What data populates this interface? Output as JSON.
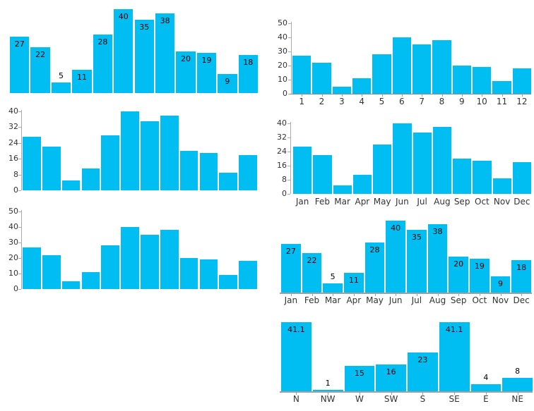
{
  "page": {
    "background": "#ffffff"
  },
  "colors": {
    "bar_fill": "#00bdf2",
    "value_label_text": "#000000",
    "tick_label_text": "#333333",
    "y_axis_line": "#ababab",
    "x_axis_line": "#a0a0a0"
  },
  "chart_data": [
    {
      "id": "labeled-bars",
      "type": "bar",
      "position": "top-left",
      "title": "",
      "categories": [],
      "values": [
        27,
        22,
        5,
        11,
        28,
        40,
        35,
        38,
        20,
        19,
        9,
        18
      ],
      "data_labels": [
        "27",
        "22",
        "5",
        "11",
        "28",
        "40",
        "35",
        "38",
        "20",
        "19",
        "9",
        "18"
      ],
      "show_data_labels": true,
      "y_axis_ticks": [],
      "x_axis_labels": [],
      "ylim": [
        0,
        40
      ],
      "grid": false,
      "legend": false
    },
    {
      "id": "numeric-axis-bars",
      "type": "bar",
      "position": "top-right",
      "title": "",
      "categories": [
        "1",
        "2",
        "3",
        "4",
        "5",
        "6",
        "7",
        "8",
        "9",
        "10",
        "11",
        "12"
      ],
      "values": [
        27,
        22,
        5,
        11,
        28,
        40,
        35,
        38,
        20,
        19,
        9,
        18
      ],
      "show_data_labels": false,
      "y_axis_ticks": [
        0,
        10,
        20,
        30,
        40,
        50
      ],
      "x_axis_labels": [
        "1",
        "2",
        "3",
        "4",
        "5",
        "6",
        "7",
        "8",
        "9",
        "10",
        "11",
        "12"
      ],
      "ylim": [
        0,
        50
      ],
      "grid": false,
      "legend": false
    },
    {
      "id": "step8-axis-bars",
      "type": "bar",
      "position": "middle-left",
      "title": "",
      "categories": [],
      "values": [
        27,
        22,
        5,
        11,
        28,
        40,
        35,
        38,
        20,
        19,
        9,
        18
      ],
      "show_data_labels": false,
      "y_axis_ticks": [
        0,
        8,
        16,
        24,
        32,
        40
      ],
      "x_axis_labels": [],
      "ylim": [
        0,
        40
      ],
      "grid": false,
      "legend": false
    },
    {
      "id": "month-axis-bars",
      "type": "bar",
      "position": "middle-right",
      "title": "",
      "categories": [
        "Jan",
        "Feb",
        "Mar",
        "Apr",
        "May",
        "Jun",
        "Jul",
        "Aug",
        "Sep",
        "Oct",
        "Nov",
        "Dec"
      ],
      "values": [
        27,
        22,
        5,
        11,
        28,
        40,
        35,
        38,
        20,
        19,
        9,
        18
      ],
      "show_data_labels": false,
      "y_axis_ticks": [
        0,
        8,
        16,
        24,
        32,
        40
      ],
      "x_axis_labels": [
        "Jan",
        "Feb",
        "Mar",
        "Apr",
        "May",
        "Jun",
        "Jul",
        "Aug",
        "Sep",
        "Oct",
        "Nov",
        "Dec"
      ],
      "ylim": [
        0,
        40
      ],
      "grid": false,
      "legend": false
    },
    {
      "id": "step10-axis-bars",
      "type": "bar",
      "position": "bottom-left",
      "title": "",
      "categories": [],
      "values": [
        27,
        22,
        5,
        11,
        28,
        40,
        35,
        38,
        20,
        19,
        9,
        18
      ],
      "show_data_labels": false,
      "y_axis_ticks": [
        0,
        10,
        20,
        30,
        40,
        50
      ],
      "x_axis_labels": [],
      "ylim": [
        0,
        50
      ],
      "grid": false,
      "legend": false
    },
    {
      "id": "labeled-month-axis-bars",
      "type": "bar",
      "position": "bottom-middle-right",
      "title": "",
      "categories": [
        "Jan",
        "Feb",
        "Mar",
        "Apr",
        "May",
        "Jun",
        "Jul",
        "Aug",
        "Sep",
        "Oct",
        "Nov",
        "Dec"
      ],
      "values": [
        27,
        22,
        5,
        11,
        28,
        40,
        35,
        38,
        20,
        19,
        9,
        18
      ],
      "data_labels": [
        "27",
        "22",
        "5",
        "11",
        "28",
        "40",
        "35",
        "38",
        "20",
        "19",
        "9",
        "18"
      ],
      "show_data_labels": true,
      "y_axis_ticks": [],
      "x_axis_labels": [
        "Jan",
        "Feb",
        "Mar",
        "Apr",
        "May",
        "Jun",
        "Jul",
        "Aug",
        "Sep",
        "Oct",
        "Nov",
        "Dec"
      ],
      "ylim": [
        0,
        40
      ],
      "baseline": true,
      "grid": false,
      "legend": false
    },
    {
      "id": "wind-direction-bars",
      "type": "bar",
      "position": "bottom-right",
      "title": "",
      "categories": [
        "N",
        "NW",
        "W",
        "SW",
        "S",
        "SE",
        "E",
        "NE"
      ],
      "values": [
        41.1,
        1,
        15,
        16,
        23,
        41.1,
        4,
        8
      ],
      "data_labels": [
        "41.1",
        "1",
        "15",
        "16",
        "23",
        "41.1",
        "4",
        "8"
      ],
      "show_data_labels": true,
      "y_axis_ticks": [],
      "x_axis_labels": [
        "N",
        "NW",
        "W",
        "SW",
        "S",
        "SE",
        "E",
        "NE"
      ],
      "ylim": [
        0,
        41.1
      ],
      "baseline": true,
      "grid": false,
      "legend": false
    }
  ]
}
